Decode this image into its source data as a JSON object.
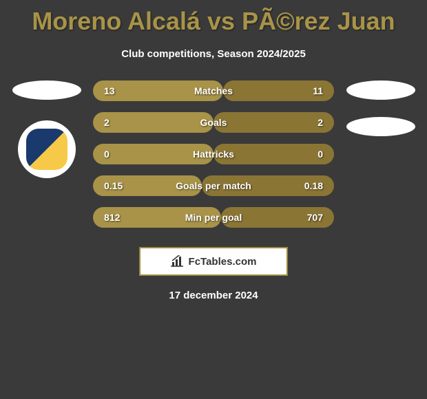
{
  "title": "Moreno Alcalá vs PÃ©rez Juan",
  "subtitle": "Club competitions, Season 2024/2025",
  "date": "17 december 2024",
  "footer_brand": "FcTables.com",
  "colors": {
    "background": "#3a3a3a",
    "title_color": "#a89348",
    "bar_left": "#a89348",
    "bar_right": "#8a7535",
    "badge_bg": "#ffffff"
  },
  "stats": [
    {
      "label": "Matches",
      "left_val": "13",
      "right_val": "11",
      "left_pct": 54,
      "right_pct": 46
    },
    {
      "label": "Goals",
      "left_val": "2",
      "right_val": "2",
      "left_pct": 50,
      "right_pct": 50
    },
    {
      "label": "Hattricks",
      "left_val": "0",
      "right_val": "0",
      "left_pct": 50,
      "right_pct": 50
    },
    {
      "label": "Goals per match",
      "left_val": "0.15",
      "right_val": "0.18",
      "left_pct": 45,
      "right_pct": 55
    },
    {
      "label": "Min per goal",
      "left_val": "812",
      "right_val": "707",
      "left_pct": 53,
      "right_pct": 47
    }
  ]
}
